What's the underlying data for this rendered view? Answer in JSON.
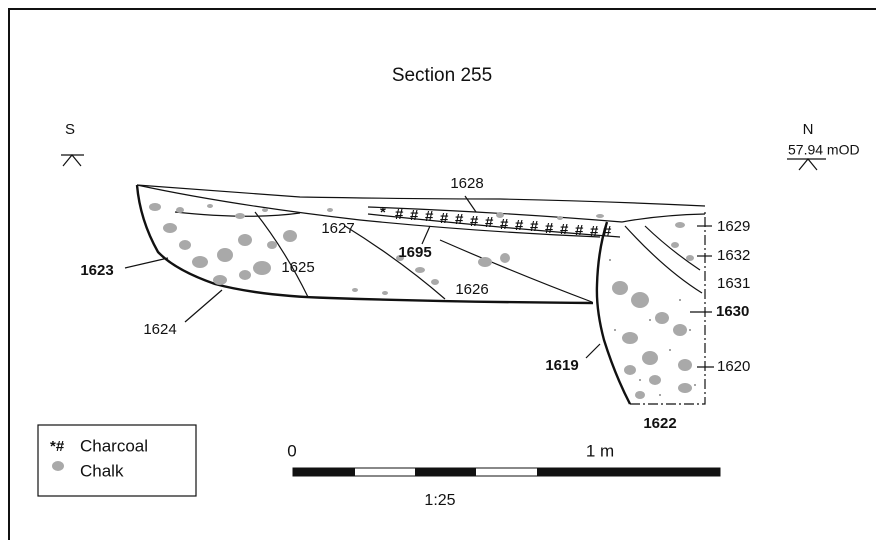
{
  "header": {
    "title": "Section 255"
  },
  "datums": {
    "south": {
      "label": "S"
    },
    "north": {
      "label": "N",
      "level": "57.94 mOD"
    }
  },
  "contexts": [
    "1628",
    "1629",
    "1627",
    "1695",
    "1632",
    "1625",
    "1631",
    "1623",
    "1626",
    "1630",
    "1624",
    "1619",
    "1620",
    "1622"
  ],
  "legend": {
    "items": [
      "Charcoal",
      "Chalk"
    ]
  },
  "scale": {
    "start": "0",
    "end": "1 m",
    "ratio": "1:25"
  }
}
